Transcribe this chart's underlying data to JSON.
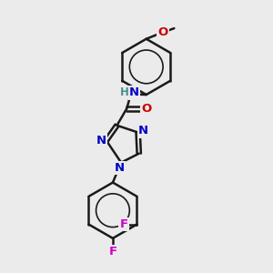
{
  "background_color": "#ebebeb",
  "bond_color": "#1a1a1a",
  "bond_width": 1.8,
  "atom_colors": {
    "N": "#0000cc",
    "O": "#cc0000",
    "F": "#cc00cc",
    "H": "#4a9090",
    "C": "#1a1a1a"
  },
  "font_size": 9.5,
  "figsize": [
    3.0,
    3.0
  ],
  "dpi": 100
}
